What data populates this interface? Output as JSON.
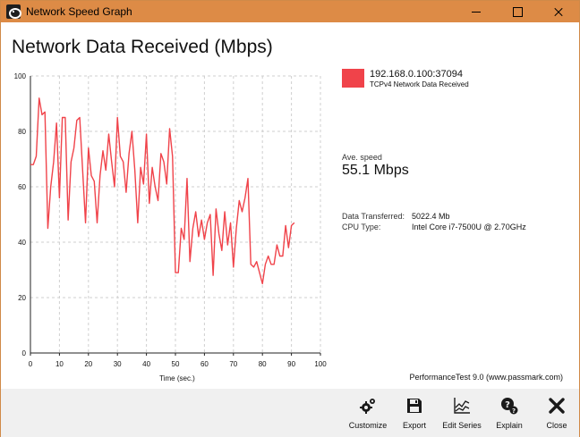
{
  "window": {
    "title": "Network Speed Graph",
    "accent": "#dd8b46"
  },
  "page_title": "Network Data Received (Mbps)",
  "chart_data": {
    "type": "line",
    "xlabel": "Time (sec.)",
    "ylabel": "",
    "xlim": [
      0,
      100
    ],
    "ylim": [
      0,
      100
    ],
    "x_ticks": [
      0,
      10,
      20,
      30,
      40,
      50,
      60,
      70,
      80,
      90,
      100
    ],
    "y_ticks": [
      0,
      20,
      40,
      60,
      80,
      100
    ],
    "grid": true,
    "series": [
      {
        "name": "192.168.0.100:37094",
        "color": "#f0434a",
        "x": [
          0,
          1,
          2,
          3,
          4,
          5,
          6,
          7,
          8,
          9,
          10,
          11,
          12,
          13,
          14,
          15,
          16,
          17,
          18,
          19,
          20,
          21,
          22,
          23,
          24,
          25,
          26,
          27,
          28,
          29,
          30,
          31,
          32,
          33,
          34,
          35,
          36,
          37,
          38,
          39,
          40,
          41,
          42,
          43,
          44,
          45,
          46,
          47,
          48,
          49,
          50,
          51,
          52,
          53,
          54,
          55,
          56,
          57,
          58,
          59,
          60,
          61,
          62,
          63,
          64,
          65,
          66,
          67,
          68,
          69,
          70,
          71,
          72,
          73,
          74,
          75,
          76,
          77,
          78,
          79,
          80,
          81,
          82,
          83,
          84,
          85,
          86,
          87,
          88,
          89,
          90,
          91
        ],
        "values": [
          68,
          68,
          71,
          92,
          86,
          87,
          45,
          60,
          69,
          83,
          56,
          85,
          85,
          48,
          69,
          74,
          84,
          85,
          66,
          47,
          74,
          64,
          62,
          47,
          64,
          73,
          66,
          79,
          69,
          60,
          85,
          71,
          69,
          58,
          72,
          80,
          66,
          47,
          67,
          61,
          79,
          54,
          67,
          60,
          55,
          72,
          69,
          61,
          81,
          71,
          29,
          29,
          45,
          41,
          63,
          33,
          45,
          51,
          42,
          48,
          41,
          47,
          50,
          28,
          52,
          43,
          37,
          51,
          39,
          47,
          31,
          45,
          55,
          51,
          56,
          63,
          32,
          31,
          33,
          29,
          25,
          32,
          35,
          32,
          32,
          39,
          35,
          35,
          46,
          38,
          46,
          47
        ]
      }
    ]
  },
  "legend": {
    "series_name": "192.168.0.100:37094",
    "series_desc": "TCPv4 Network Data Received",
    "color": "#f0434a"
  },
  "stats": {
    "avg_label": "Ave. speed",
    "avg_value": "55.1 Mbps",
    "transferred_label": "Data Transferred:",
    "transferred_value": "5022.4 Mb",
    "cpu_label": "CPU Type:",
    "cpu_value": "Intel Core i7-7500U @ 2.70GHz"
  },
  "credit": "PerformanceTest 9.0 (www.passmark.com)",
  "toolbar": {
    "customize": "Customize",
    "export": "Export",
    "edit_series": "Edit Series",
    "explain": "Explain",
    "close": "Close"
  }
}
